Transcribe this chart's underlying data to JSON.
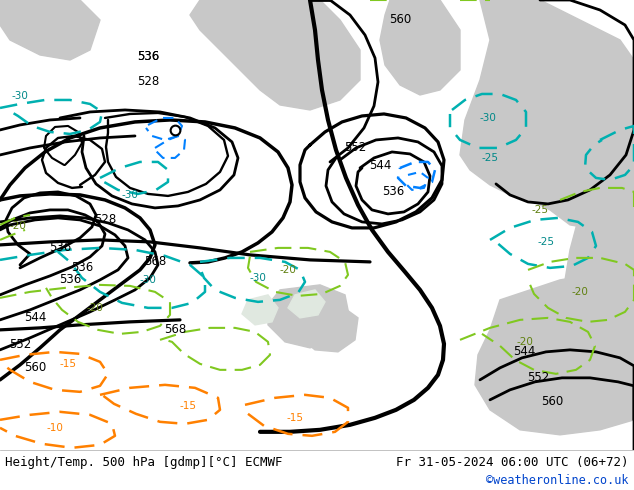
{
  "title_left": "Height/Temp. 500 hPa [gdmp][°C] ECMWF",
  "title_right": "Fr 31-05-2024 06:00 UTC (06+72)",
  "credit": "©weatheronline.co.uk",
  "land_color": "#c8e8a0",
  "sea_color": "#c8c8c8",
  "footer_bg": "#ffffff",
  "credit_color": "#0044cc",
  "black": "#000000",
  "cyan": "#00b0b0",
  "blue": "#0080ff",
  "green_dash": "#80c820",
  "orange": "#ff8000"
}
